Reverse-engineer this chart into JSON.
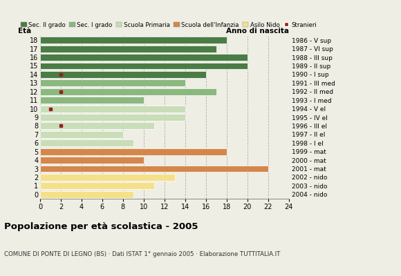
{
  "ages": [
    18,
    17,
    16,
    15,
    14,
    13,
    12,
    11,
    10,
    9,
    8,
    7,
    6,
    5,
    4,
    3,
    2,
    1,
    0
  ],
  "right_labels": [
    "1986 - V sup",
    "1987 - VI sup",
    "1988 - III sup",
    "1989 - II sup",
    "1990 - I sup",
    "1991 - III med",
    "1992 - II med",
    "1993 - I med",
    "1994 - V el",
    "1995 - IV el",
    "1996 - III el",
    "1997 - II el",
    "1998 - I el",
    "1999 - mat",
    "2000 - mat",
    "2001 - mat",
    "2002 - nido",
    "2003 - nido",
    "2004 - nido"
  ],
  "bar_values": [
    18,
    17,
    20,
    20,
    16,
    14,
    17,
    10,
    14,
    14,
    11,
    8,
    9,
    18,
    10,
    22,
    13,
    11,
    9
  ],
  "stranieri_x": [
    0,
    0,
    0,
    0,
    2,
    0,
    2,
    0,
    1,
    0,
    2,
    0,
    0,
    0,
    0,
    0,
    0,
    0,
    0
  ],
  "colors": {
    "sec_II": "#4a7c45",
    "sec_I": "#8ab87f",
    "primaria": "#c8ddb8",
    "infanzia": "#d4874b",
    "nido": "#f5e08a",
    "stranieri": "#9b1c1c"
  },
  "school_types": {
    "18": "sec_II",
    "17": "sec_II",
    "16": "sec_II",
    "15": "sec_II",
    "14": "sec_II",
    "13": "sec_I",
    "12": "sec_I",
    "11": "sec_I",
    "10": "primaria",
    "9": "primaria",
    "8": "primaria",
    "7": "primaria",
    "6": "primaria",
    "5": "infanzia",
    "4": "infanzia",
    "3": "infanzia",
    "2": "nido",
    "1": "nido",
    "0": "nido"
  },
  "title": "Popolazione per età scolastica - 2005",
  "subtitle": "COMUNE DI PONTE DI LEGNO (BS) · Dati ISTAT 1° gennaio 2005 · Elaborazione TUTTITALIA.IT",
  "eta_label": "Età",
  "anno_label": "Anno di nascita",
  "xlim": [
    0,
    24
  ],
  "xticks": [
    0,
    2,
    4,
    6,
    8,
    10,
    12,
    14,
    16,
    18,
    20,
    22,
    24
  ],
  "legend_labels": [
    "Sec. II grado",
    "Sec. I grado",
    "Scuola Primaria",
    "Scuola dell'Infanzia",
    "Asilo Nido",
    "Stranieri"
  ],
  "legend_colors": [
    "#4a7c45",
    "#8ab87f",
    "#c8ddb8",
    "#d4874b",
    "#f5e08a",
    "#9b1c1c"
  ],
  "background_color": "#eeeee4"
}
